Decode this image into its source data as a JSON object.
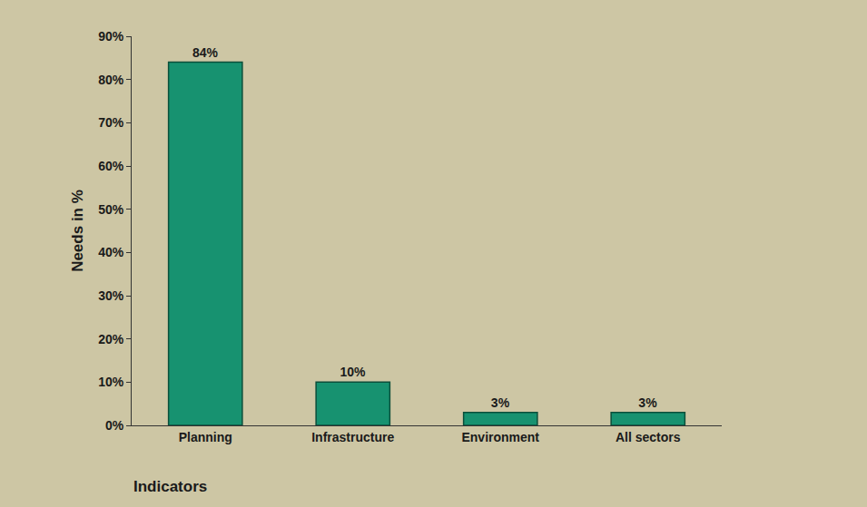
{
  "chart_data": {
    "type": "bar",
    "y_label": "Needs in %",
    "x_label": "Indicators",
    "categories": [
      "Planning",
      "Infrastructure",
      "Environment",
      "All sectors"
    ],
    "values": [
      84,
      10,
      3,
      3
    ],
    "value_labels": [
      "84%",
      "10%",
      "3%",
      "3%"
    ],
    "data_labels": true,
    "color": "#179270",
    "ylim": [
      0,
      90
    ],
    "yticks": [
      {
        "value": 0,
        "label": "0%"
      },
      {
        "value": 10,
        "label": "10%"
      },
      {
        "value": 20,
        "label": "20%"
      },
      {
        "value": 30,
        "label": "30%"
      },
      {
        "value": 40,
        "label": "40%"
      },
      {
        "value": 50,
        "label": "50%"
      },
      {
        "value": 60,
        "label": "60%"
      },
      {
        "value": 70,
        "label": "70%"
      },
      {
        "value": 80,
        "label": "80%"
      },
      {
        "value": 90,
        "label": "90%"
      }
    ],
    "grid": false
  }
}
